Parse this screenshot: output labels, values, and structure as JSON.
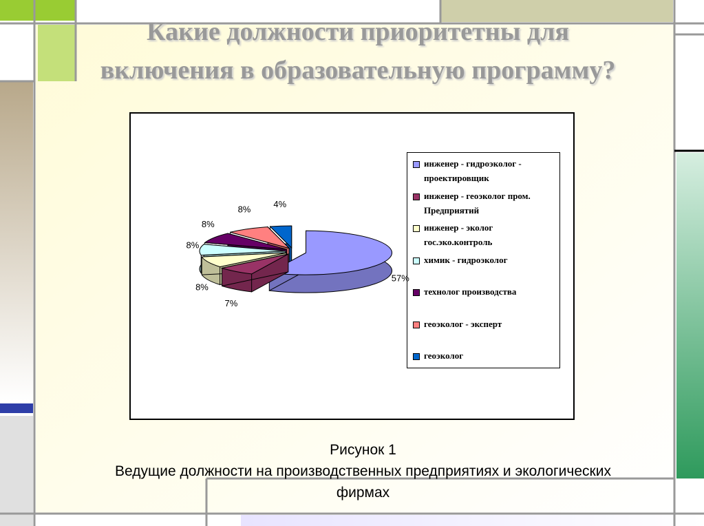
{
  "slide": {
    "title": "Какие должности приоритетны для включения в образовательную программу?",
    "caption_label": "Рисунок 1",
    "caption_text": "Ведущие должности на производственных предприятиях и экологических фирмах"
  },
  "chart_data": {
    "type": "pie",
    "categories": [
      "инженер - гидроэколог - проектировщик",
      "инженер - геоэколог пром. Предприятий",
      "инженер - эколог гос.эко.контроль",
      "химик - гидроэколог",
      "технолог производства",
      "геоэколог - эксперт",
      "геоэколог"
    ],
    "values": [
      57,
      7,
      8,
      8,
      8,
      8,
      4
    ],
    "value_labels": [
      "57%",
      "7%",
      "8%",
      "8%",
      "8%",
      "8%",
      "4%"
    ],
    "colors": [
      "#9999ff",
      "#993366",
      "#ffffcc",
      "#ccffff",
      "#660066",
      "#ff8080",
      "#0066cc"
    ],
    "legend": "right"
  }
}
